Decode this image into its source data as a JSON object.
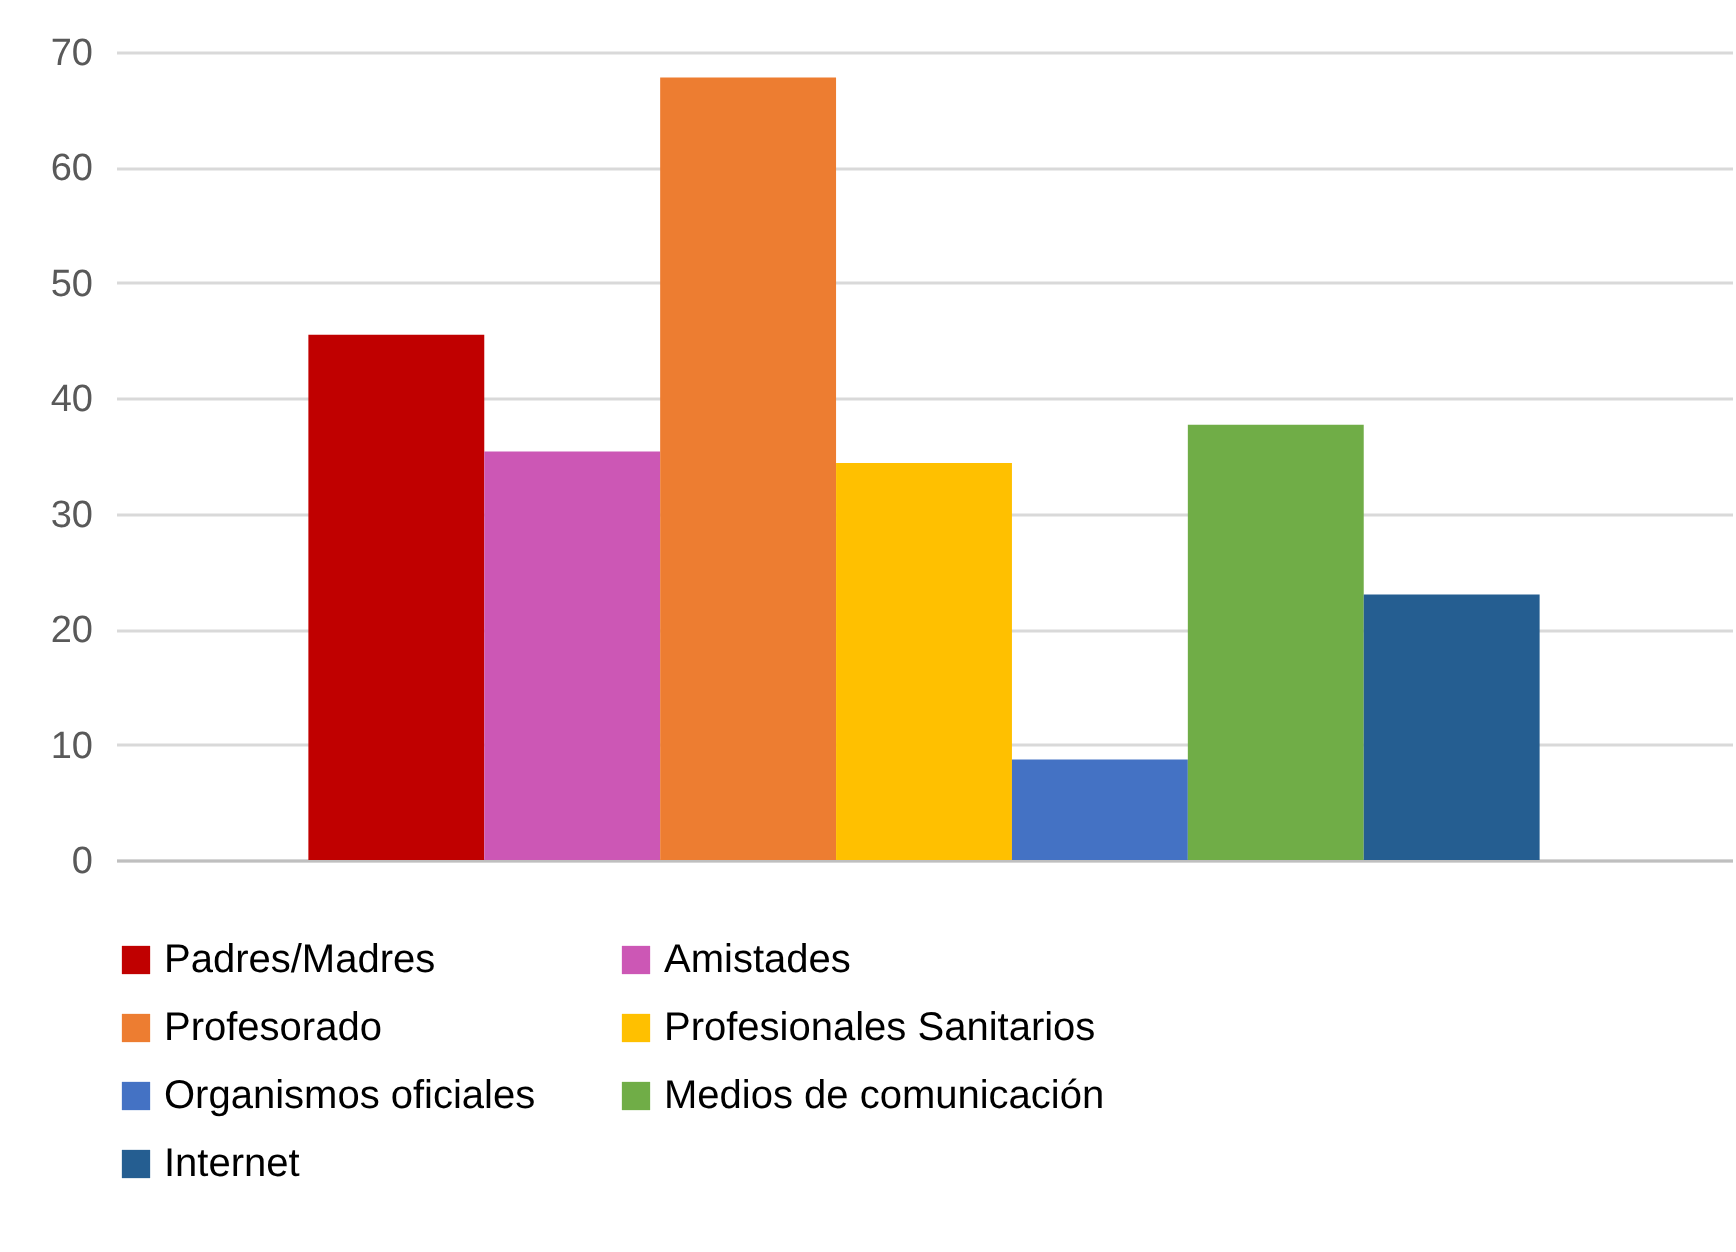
{
  "chart_data": {
    "type": "bar",
    "categories": [
      null
    ],
    "series": [
      {
        "name": "Padres/Madres",
        "color": "#c00000",
        "values": [
          45.5
        ]
      },
      {
        "name": "Amistades",
        "color": "#cc57b5",
        "values": [
          35.4
        ]
      },
      {
        "name": "Profesorado",
        "color": "#ed7d31",
        "values": [
          67.8
        ]
      },
      {
        "name": "Profesionales Sanitarios",
        "color": "#ffc000",
        "values": [
          34.4
        ]
      },
      {
        "name": "Organismos oficiales",
        "color": "#4472c4",
        "values": [
          8.7
        ]
      },
      {
        "name": "Medios de comunicación",
        "color": "#70ad47",
        "values": [
          37.7
        ]
      },
      {
        "name": "Internet",
        "color": "#255e91",
        "values": [
          23.0
        ]
      }
    ],
    "ylim": [
      0,
      70
    ],
    "yticks": [
      0,
      10,
      20,
      30,
      40,
      50,
      60,
      70
    ],
    "grid": "y",
    "legend": "bottom",
    "tick_labels": "y"
  }
}
